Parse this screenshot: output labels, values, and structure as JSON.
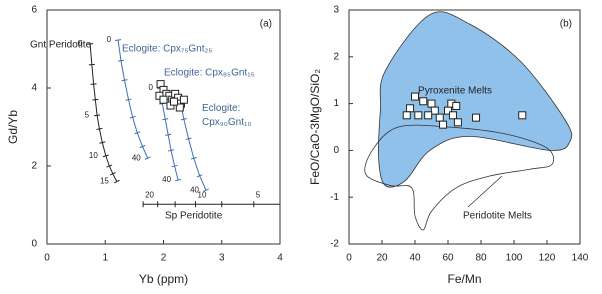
{
  "chart_data": [
    {
      "type": "line",
      "panel_label": "(a)",
      "x_label": "Yb (ppm)",
      "y_label": "Gd/Yb",
      "xlim": [
        0,
        4
      ],
      "xticks": [
        0,
        1,
        2,
        3,
        4
      ],
      "ylim": [
        0,
        6
      ],
      "yticks": [
        0,
        2,
        4,
        6
      ],
      "series": [
        {
          "name": "Gnt Peridotite",
          "color": "#222222",
          "x": [
            0.74,
            0.77,
            0.8,
            0.83,
            0.86,
            0.9,
            0.95,
            1.01,
            1.07,
            1.13,
            1.2
          ],
          "y": [
            5.13,
            4.6,
            4.1,
            3.7,
            3.3,
            2.95,
            2.6,
            2.26,
            2.0,
            1.8,
            1.6
          ],
          "point_labels": [
            "0",
            null,
            null,
            null,
            "5",
            null,
            null,
            "10",
            null,
            null,
            "15"
          ]
        },
        {
          "name": "Eclogite: Cpx₇₅Gnt₂₅",
          "color": "#3d6fb0",
          "x": [
            1.22,
            1.27,
            1.33,
            1.4,
            1.47,
            1.55,
            1.64,
            1.73
          ],
          "y": [
            5.23,
            4.7,
            4.2,
            3.7,
            3.25,
            2.85,
            2.5,
            2.2
          ],
          "point_labels": [
            "0",
            null,
            null,
            null,
            null,
            null,
            null,
            "40"
          ]
        },
        {
          "name": "Eclogite: Cpx₈₅Gnt₁₅",
          "color": "#3d6fb0",
          "x": [
            1.94,
            1.98,
            2.03,
            2.08,
            2.13,
            2.19,
            2.25
          ],
          "y": [
            4.0,
            3.6,
            3.2,
            2.8,
            2.4,
            2.0,
            1.64
          ],
          "point_labels": [
            "0",
            null,
            null,
            null,
            null,
            null,
            "40"
          ]
        },
        {
          "name": "Eclogite: Cpx₉₀Gnt₁₀",
          "color": "#3d6fb0",
          "x": [
            2.28,
            2.35,
            2.43,
            2.52,
            2.62,
            2.73
          ],
          "y": [
            3.7,
            3.2,
            2.7,
            2.2,
            1.75,
            1.38
          ],
          "point_labels": [
            null,
            null,
            null,
            null,
            null,
            "40"
          ]
        },
        {
          "name": "Sp Peridotite",
          "color": "#222222",
          "x": [
            1.65,
            1.9,
            2.2,
            2.55,
            3.0,
            3.55,
            4.0
          ],
          "y": [
            1.02,
            1.02,
            1.02,
            1.02,
            1.02,
            1.02,
            1.02
          ],
          "point_labels": [
            "20",
            null,
            null,
            "10",
            null,
            "5",
            null
          ]
        }
      ],
      "samples": {
        "x": [
          1.95,
          2.0,
          2.05,
          1.93,
          2.1,
          2.15,
          2.2,
          2.25,
          2.3,
          2.35,
          2.12,
          2.0,
          2.28,
          2.18
        ],
        "y": [
          4.1,
          3.95,
          3.85,
          3.8,
          3.8,
          3.7,
          3.85,
          3.75,
          3.6,
          3.7,
          3.55,
          3.7,
          3.5,
          3.65
        ]
      }
    },
    {
      "type": "scatter",
      "panel_label": "(b)",
      "x_label": "Fe/Mn",
      "y_label": "FeO/CaO-3MgO/SiO₂",
      "xlim": [
        0,
        140
      ],
      "xticks": [
        0,
        20,
        40,
        60,
        80,
        100,
        120,
        140
      ],
      "ylim": [
        -2,
        3
      ],
      "yticks": [
        -2,
        -1,
        0,
        1,
        2,
        3
      ],
      "regions": [
        {
          "name": "Pyroxenite Melts",
          "color": "#8fc1ea",
          "x": [
            22,
            49,
            73,
            104,
            131,
            134,
            122,
            73,
            49,
            34,
            22,
            18,
            19
          ],
          "y": [
            1.7,
            2.9,
            2.7,
            1.9,
            0.65,
            0.2,
            0.0,
            0.3,
            0.0,
            -0.65,
            -0.75,
            -0.2,
            0.85
          ]
        },
        {
          "name": "Peridotite Melts",
          "color": "none",
          "x": [
            10,
            15,
            30,
            60,
            95,
            120,
            123,
            110,
            85,
            65,
            50,
            45,
            40,
            38,
            25
          ],
          "y": [
            -0.5,
            0.05,
            0.5,
            0.5,
            0.35,
            0.05,
            -0.3,
            -0.4,
            -0.55,
            -0.8,
            -1.3,
            -1.7,
            -1.4,
            -0.8,
            -0.75
          ]
        }
      ],
      "x": [
        37,
        35,
        40,
        45,
        50,
        42,
        55,
        57,
        60,
        62,
        63,
        65,
        66,
        52,
        48,
        77,
        105
      ],
      "y": [
        0.9,
        0.75,
        1.15,
        1.05,
        1.0,
        0.75,
        0.7,
        0.55,
        0.85,
        1.0,
        0.75,
        0.95,
        0.6,
        0.85,
        0.75,
        0.7,
        0.75
      ]
    }
  ]
}
